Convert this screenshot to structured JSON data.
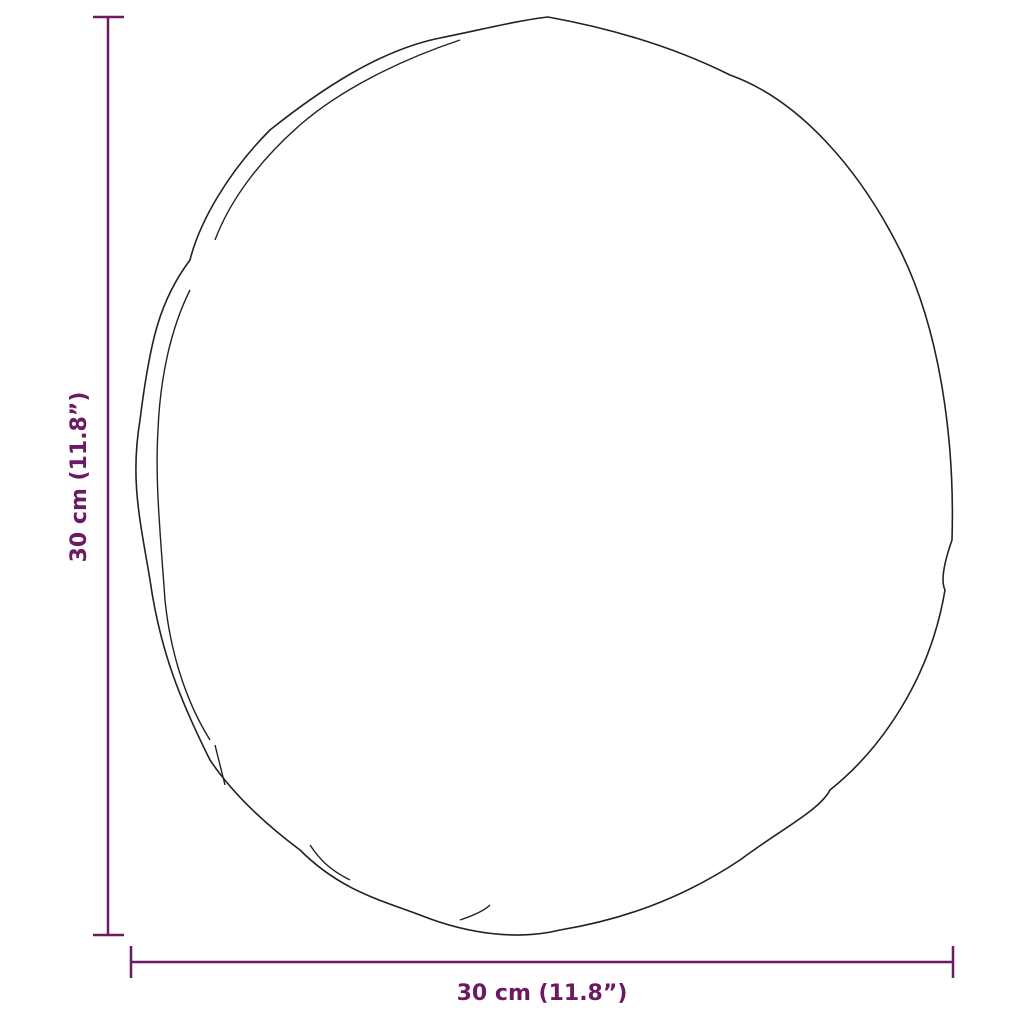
{
  "dimensions": {
    "height": "30 cm (11.8”)",
    "width": "30 cm (11.8”)"
  }
}
